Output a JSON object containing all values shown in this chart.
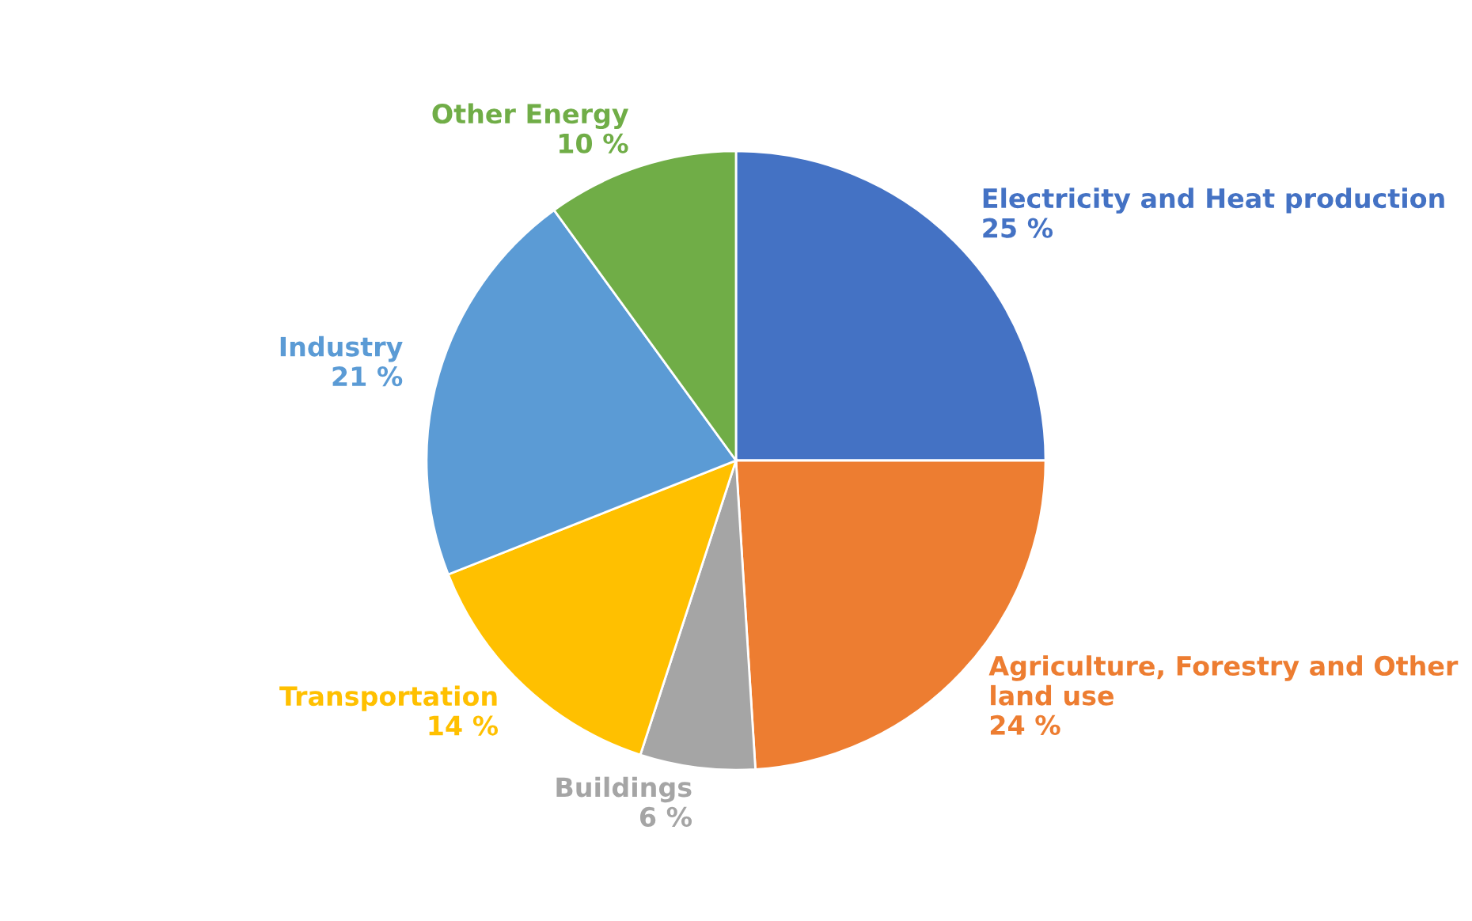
{
  "chart_data": {
    "type": "pie",
    "categories": [
      "Electricity and Heat production",
      "Agriculture, Forestry and Other land use",
      "Buildings",
      "Transportation",
      "Industry",
      "Other Energy"
    ],
    "values": [
      25,
      24,
      6,
      14,
      21,
      10
    ],
    "value_labels": [
      "25 %",
      "24 %",
      "6 %",
      "14 %",
      "21 %",
      "10 %"
    ],
    "colors": [
      "#4472c4",
      "#ed7d31",
      "#a5a5a5",
      "#ffc000",
      "#5b9bd5",
      "#70ad47"
    ]
  }
}
